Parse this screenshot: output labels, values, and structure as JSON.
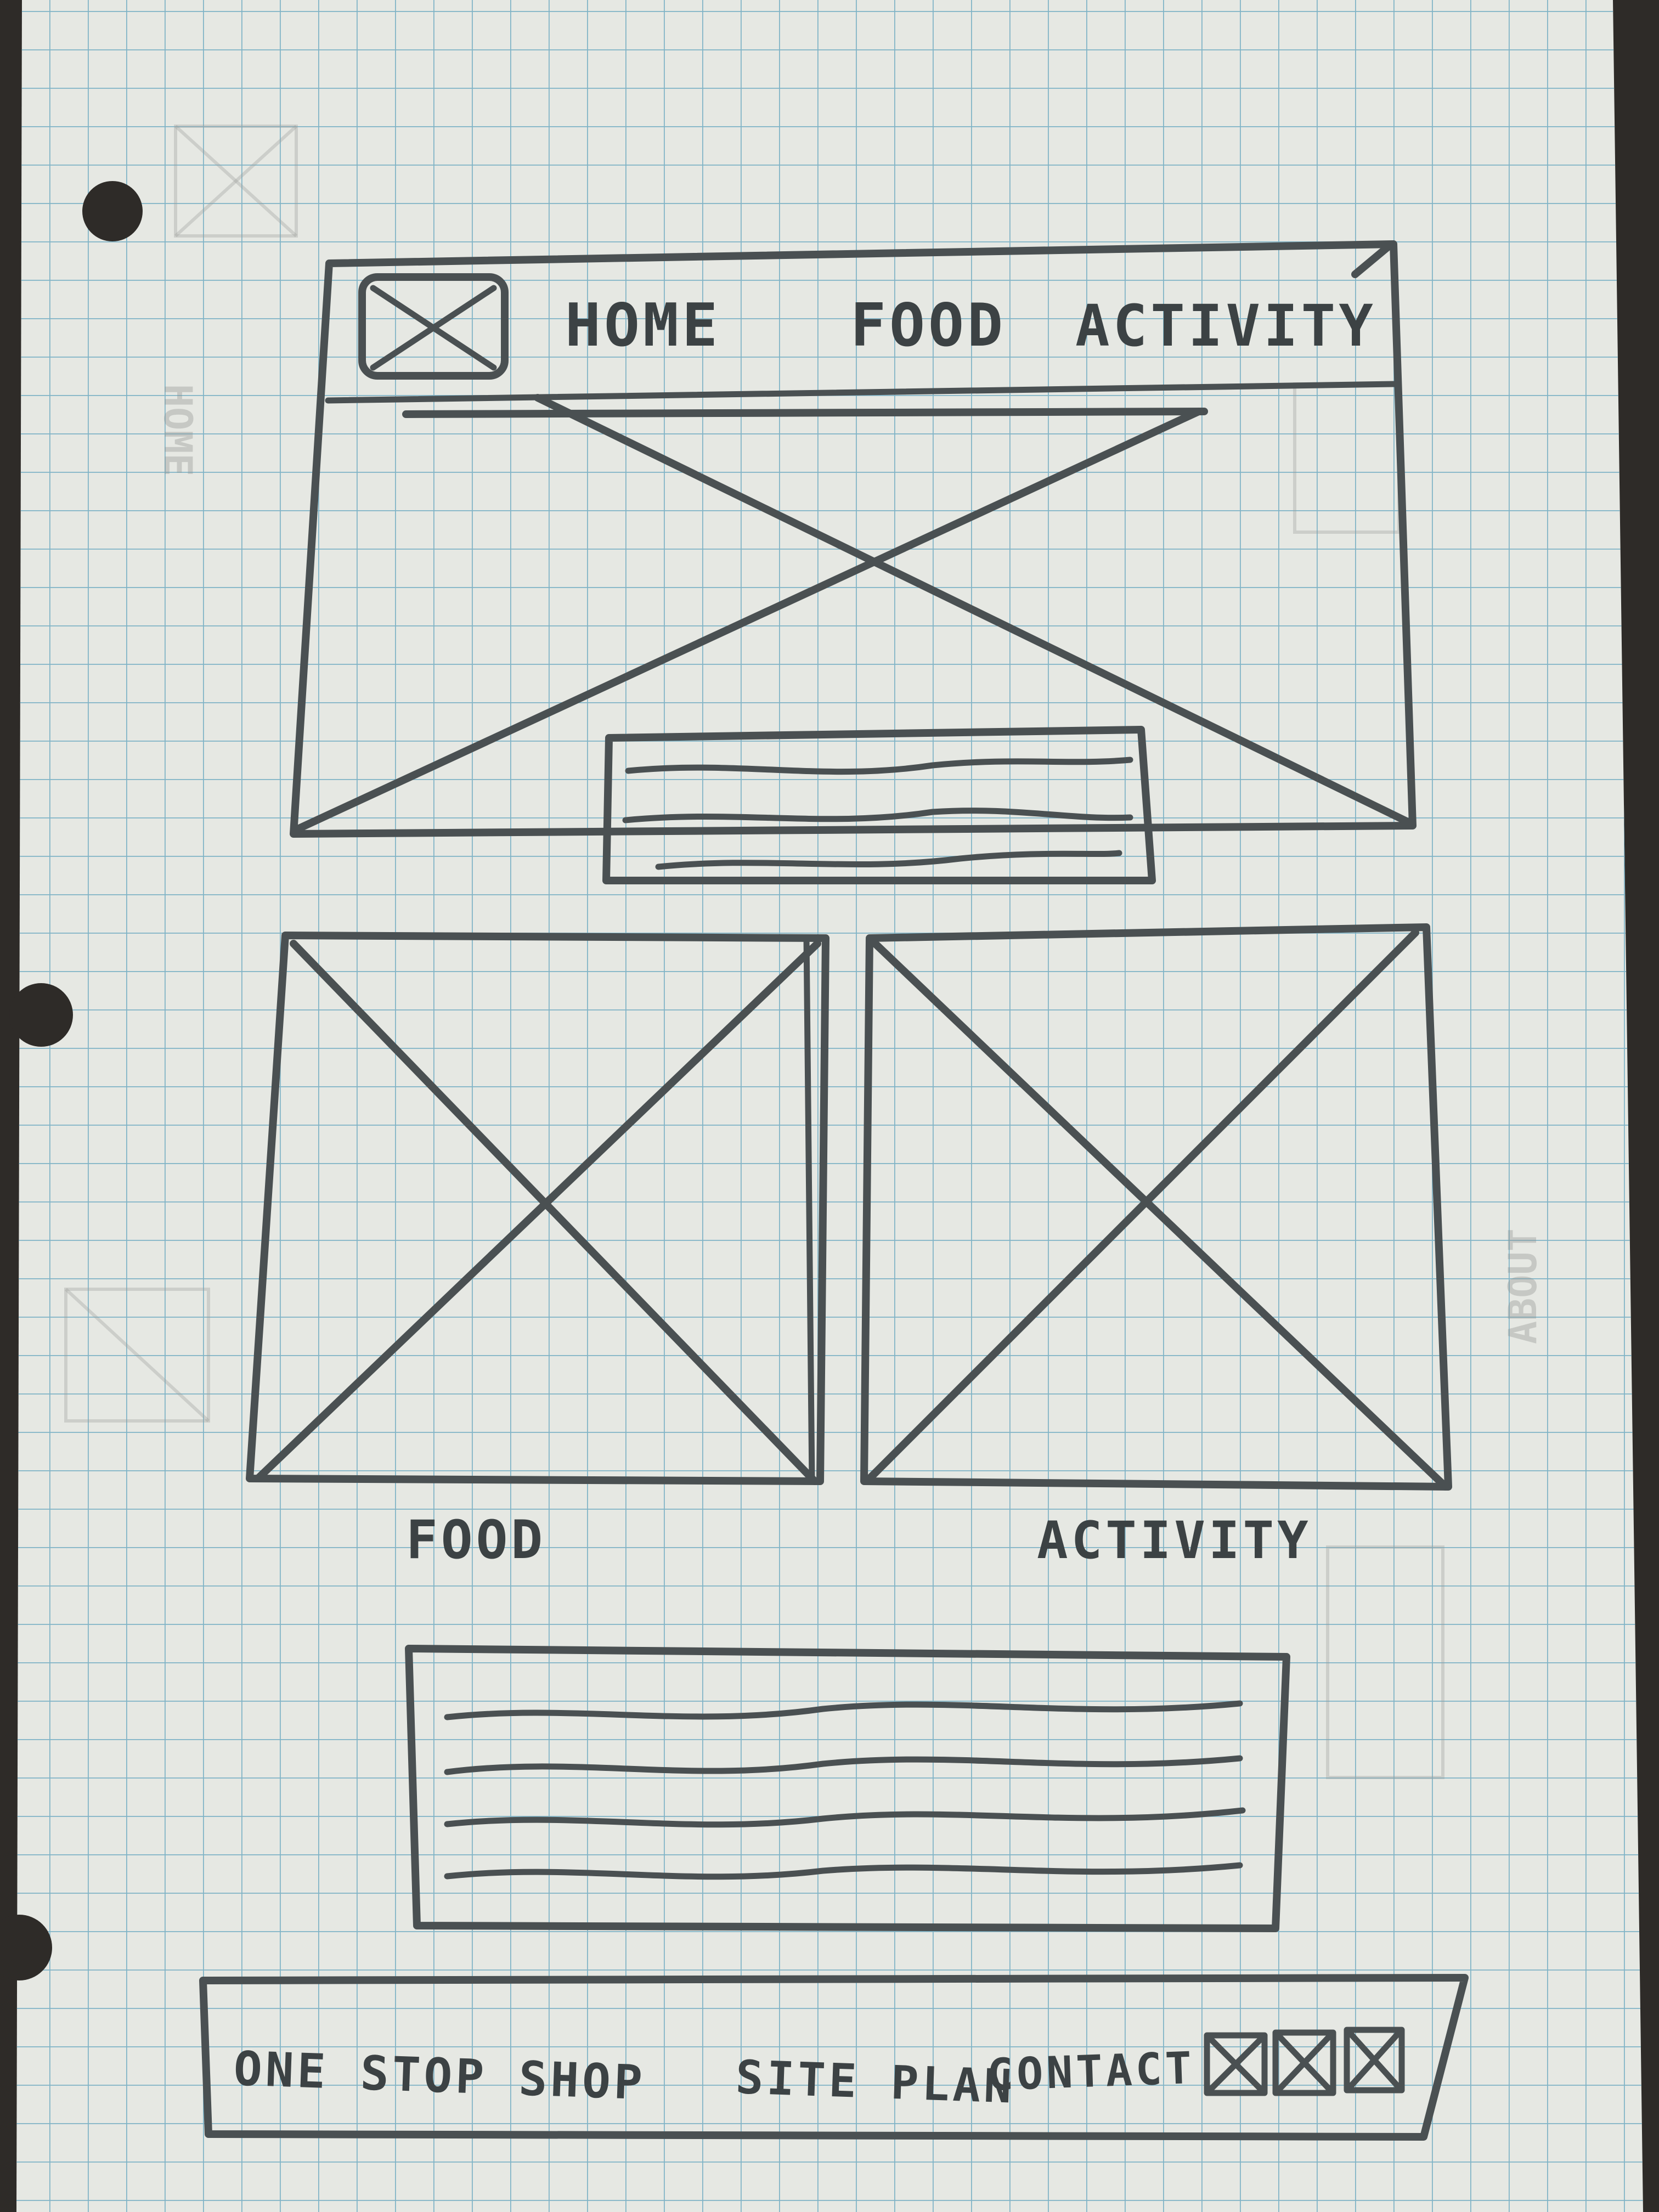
{
  "nav": {
    "home": "HOME",
    "food": "FOOD",
    "activity": "ACTIVITY"
  },
  "cards": {
    "food_label": "FOOD",
    "activity_label": "ACTIVITY"
  },
  "footer": {
    "brand": "ONE STOP SHOP",
    "site_plan": "SITE PLAN",
    "contact": "CONTACT"
  },
  "colors": {
    "paper": "#e9ebe6",
    "grid": "#7fb3c6",
    "ink": "#4a5052"
  }
}
